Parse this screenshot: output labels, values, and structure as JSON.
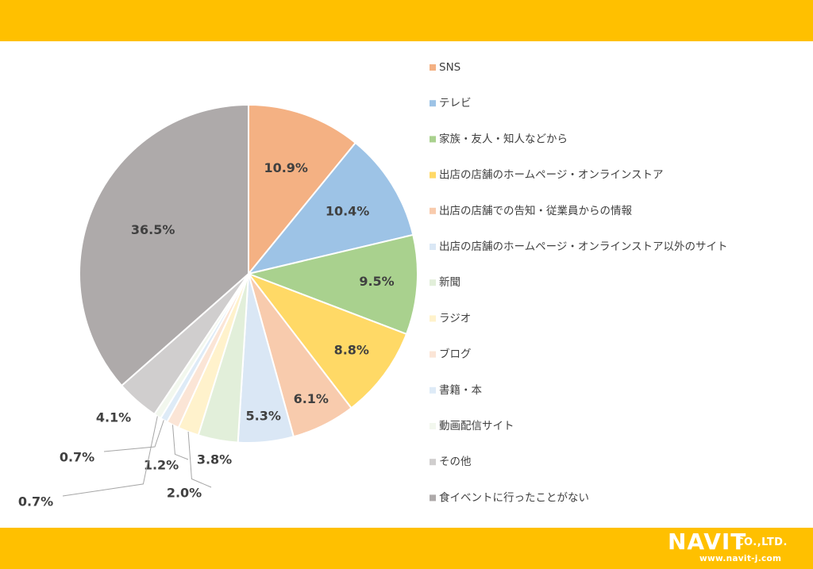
{
  "chart_data": {
    "type": "pie",
    "title": "",
    "legend_position": "right",
    "categories": [
      "SNS",
      "テレビ",
      "家族・友人・知人などから",
      "出店の店舗のホームページ・オンラインストア",
      "出店の店舗での告知・従業員からの情報",
      "出店の店舗のホームページ・オンラインストア以外のサイト",
      "新聞",
      "ラジオ",
      "ブログ",
      "書籍・本",
      "動画配信サイト",
      "その他",
      "食イベントに行ったことがない"
    ],
    "values": [
      10.9,
      10.4,
      9.5,
      8.8,
      6.1,
      5.3,
      3.8,
      2.0,
      1.2,
      0.7,
      0.7,
      4.1,
      36.5
    ],
    "data_labels": [
      "10.9%",
      "10.4%",
      "9.5%",
      "8.8%",
      "6.1%",
      "5.3%",
      "3.8%",
      "2.0%",
      "1.2%",
      "0.7%",
      "0.7%",
      "4.1%",
      "36.5%"
    ],
    "colors": [
      "#F4B183",
      "#9DC3E6",
      "#A9D18E",
      "#FFD966",
      "#F8CBAD",
      "#DAE7F5",
      "#E2EFDA",
      "#FFF2CC",
      "#FBE5D6",
      "#DEEBF7",
      "#F2F7EE",
      "#D0CECE",
      "#AEAAAA"
    ]
  },
  "logo": {
    "name": "NAVIT",
    "suffix": "CO.,LTD.",
    "url": "www.navit-j.com"
  }
}
